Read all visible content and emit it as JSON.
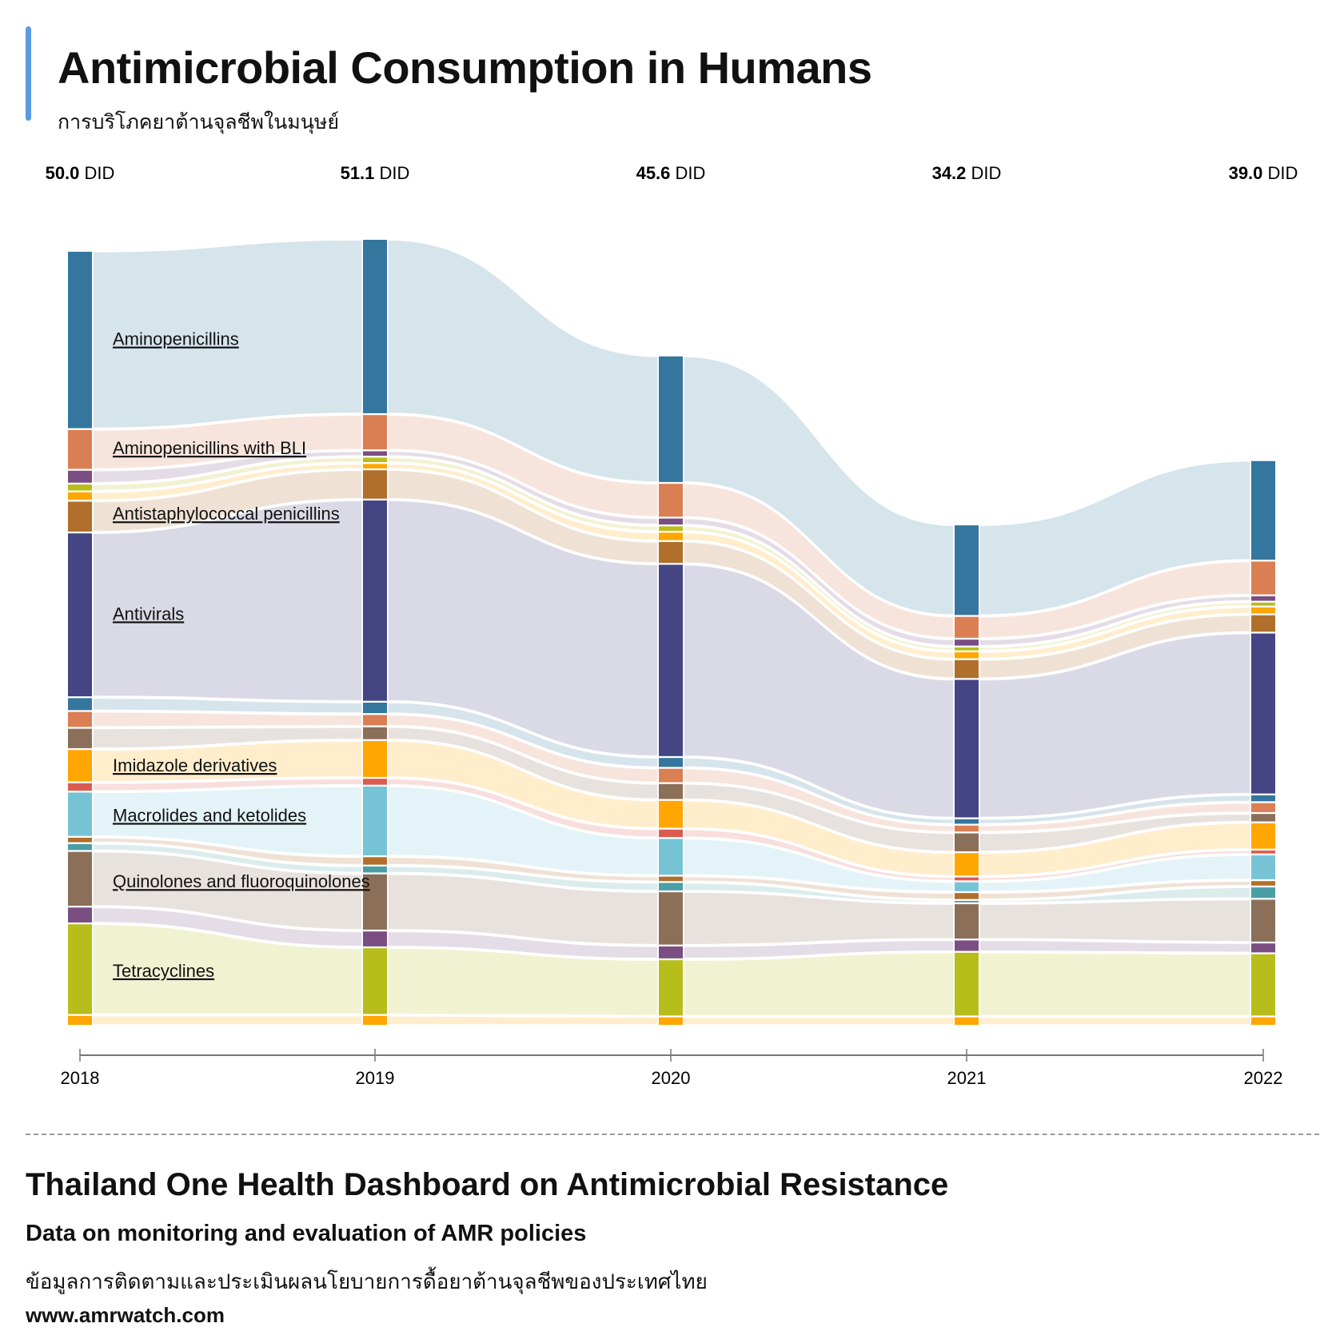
{
  "header": {
    "title": "Antimicrobial Consumption in Humans",
    "subtitle_thai": "การบริโภคยาต้านจุลชีพในมนุษย์",
    "accent_color": "#5b9be0"
  },
  "footer": {
    "title": "Thailand One Health Dashboard on Antimicrobial Resistance",
    "subtitle": "Data on monitoring and evaluation of AMR policies",
    "thai": "ข้อมูลการติดตามและประเมินผลนโยบายการดื้อยาต้านจุลชีพของประเทศไทย",
    "url": "www.amrwatch.com"
  },
  "chart_data": {
    "type": "area",
    "subtype": "sankey-style stacked flow",
    "title": "Antimicrobial Consumption in Humans",
    "unit": "DID",
    "x": [
      "2018",
      "2019",
      "2020",
      "2021",
      "2022"
    ],
    "totals": [
      50.0,
      51.1,
      45.6,
      34.2,
      39.0
    ],
    "total_labels": [
      "50.0",
      "51.1",
      "45.6",
      "34.2",
      "39.0"
    ],
    "total_unit_label": "DID",
    "series": [
      {
        "name": "Aminopenicillins",
        "labeled": true,
        "color": "#34769e",
        "values": [
          11.8,
          11.6,
          8.4,
          6.0,
          6.6
        ]
      },
      {
        "name": "Aminopenicillins with BLI",
        "labeled": true,
        "color": "#d97f53",
        "values": [
          2.6,
          2.3,
          2.2,
          1.4,
          2.2
        ]
      },
      {
        "name": "",
        "labeled": false,
        "color": "#7a4e83",
        "values": [
          0.8,
          0.3,
          0.4,
          0.4,
          0.3
        ]
      },
      {
        "name": "",
        "labeled": false,
        "color": "#b7bd1a",
        "values": [
          0.4,
          0.3,
          0.3,
          0.2,
          0.2
        ]
      },
      {
        "name": "",
        "labeled": false,
        "color": "#ffa600",
        "values": [
          0.5,
          0.3,
          0.5,
          0.4,
          0.4
        ]
      },
      {
        "name": "Antistaphylococcal penicillins",
        "labeled": true,
        "color": "#b06f2b",
        "values": [
          2.0,
          1.9,
          1.4,
          1.2,
          1.1
        ]
      },
      {
        "name": "Antivirals",
        "labeled": true,
        "color": "#444582",
        "values": [
          10.9,
          13.4,
          12.8,
          9.2,
          10.7
        ]
      },
      {
        "name": "",
        "labeled": false,
        "color": "#34769e",
        "values": [
          0.8,
          0.7,
          0.6,
          0.3,
          0.4
        ]
      },
      {
        "name": "",
        "labeled": false,
        "color": "#d97f53",
        "values": [
          1.0,
          0.7,
          0.9,
          0.4,
          0.6
        ]
      },
      {
        "name": "",
        "labeled": false,
        "color": "#8b6f58",
        "values": [
          1.3,
          0.8,
          1.0,
          1.2,
          0.5
        ]
      },
      {
        "name": "Imidazole derivatives",
        "labeled": true,
        "color": "#ffa600",
        "values": [
          2.1,
          2.4,
          1.8,
          1.5,
          1.7
        ]
      },
      {
        "name": "",
        "labeled": false,
        "color": "#dc5b50",
        "values": [
          0.5,
          0.4,
          0.5,
          0.2,
          0.2
        ]
      },
      {
        "name": "Macrolides and ketolides",
        "labeled": true,
        "color": "#77c3d6",
        "values": [
          2.9,
          4.6,
          2.4,
          0.6,
          1.6
        ]
      },
      {
        "name": "",
        "labeled": false,
        "color": "#b06f2b",
        "values": [
          0.3,
          0.5,
          0.3,
          0.4,
          0.3
        ]
      },
      {
        "name": "",
        "labeled": false,
        "color": "#4a9ea6",
        "values": [
          0.4,
          0.4,
          0.5,
          0.1,
          0.7
        ]
      },
      {
        "name": "Quinolones and fluoroquinolones",
        "labeled": true,
        "color": "#8b6f58",
        "values": [
          3.6,
          3.7,
          3.5,
          2.3,
          2.8
        ]
      },
      {
        "name": "",
        "labeled": false,
        "color": "#7a4e83",
        "values": [
          1.0,
          1.0,
          0.8,
          0.7,
          0.6
        ]
      },
      {
        "name": "Tetracyclines",
        "labeled": true,
        "color": "#b7bd1a",
        "values": [
          6.0,
          4.4,
          3.7,
          4.2,
          4.1
        ]
      },
      {
        "name": "",
        "labeled": false,
        "color": "#ffa600",
        "values": [
          0.6,
          0.6,
          0.5,
          0.5,
          0.5
        ]
      }
    ],
    "axis": {
      "ticks": [
        "2018",
        "2019",
        "2020",
        "2021",
        "2022"
      ],
      "grid": false
    },
    "legend": "inline labels on first column flows"
  }
}
